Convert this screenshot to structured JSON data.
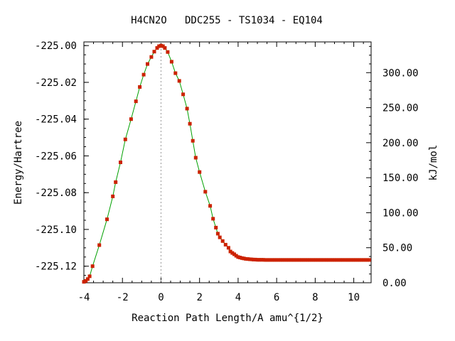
{
  "chart_data": {
    "type": "line",
    "title": "H4CN2O   DDC255 - TS1034 - EQ104",
    "xlabel": "Reaction Path Length/A amu^{1/2}",
    "ylabel": "Energy/Hartree",
    "y2label": "kJ/mol",
    "xlim": [
      -4.0,
      10.9
    ],
    "ylim": [
      -225.129,
      -224.998
    ],
    "y2lim": [
      0,
      343.9
    ],
    "x_ticks": [
      -4,
      -2,
      0,
      2,
      4,
      6,
      8,
      10
    ],
    "x_tick_labels": [
      "-4",
      "-2",
      "0",
      "2",
      "4",
      "6",
      "8",
      "10"
    ],
    "y_ticks": [
      -225.0,
      -225.02,
      -225.04,
      -225.06,
      -225.08,
      -225.1,
      -225.12
    ],
    "y_tick_labels": [
      "-225.00",
      "-225.02",
      "-225.04",
      "-225.06",
      "-225.08",
      "-225.10",
      "-225.12"
    ],
    "y2_ticks": [
      0,
      50,
      100,
      150,
      200,
      250,
      300
    ],
    "y2_tick_labels": [
      "0.00",
      "50.00",
      "100.00",
      "150.00",
      "200.00",
      "250.00",
      "300.00"
    ],
    "ts_marker_x": 0,
    "line_color": "#00a000",
    "marker_color": "#cc2200",
    "guide_color": "#999999",
    "series": [
      {
        "x": [
          -4.0,
          -3.9,
          -3.8,
          -3.7,
          -3.55,
          -3.2,
          -2.8,
          -2.5,
          -2.35,
          -2.1,
          -1.85,
          -1.55,
          -1.3,
          -1.1,
          -0.9,
          -0.7,
          -0.5,
          -0.35,
          -0.2,
          -0.1,
          0.0,
          0.1,
          0.2,
          0.35,
          0.55,
          0.75,
          0.95,
          1.15,
          1.35,
          1.5,
          1.65,
          1.8,
          2.0,
          2.3,
          2.55,
          2.7,
          2.85,
          2.95,
          3.05,
          3.2,
          3.35,
          3.5,
          3.6,
          3.7,
          3.8,
          3.9,
          4.0,
          4.1,
          4.2,
          4.3,
          4.4,
          4.5,
          4.6,
          4.7,
          4.8,
          4.9,
          5.0,
          5.1,
          5.2,
          5.3,
          5.4,
          5.5,
          5.6,
          5.7,
          5.8,
          5.9,
          6.0,
          6.1,
          6.2,
          6.3,
          6.4,
          6.5,
          6.6,
          6.7,
          6.8,
          6.9,
          7.0,
          7.1,
          7.2,
          7.3,
          7.4,
          7.5,
          7.6,
          7.7,
          7.8,
          7.9,
          8.0,
          8.1,
          8.2,
          8.3,
          8.4,
          8.5,
          8.6,
          8.7,
          8.8,
          8.9,
          9.0,
          9.1,
          9.2,
          9.3,
          9.4,
          9.5,
          9.6,
          9.7,
          9.8,
          9.9,
          10.0,
          10.1,
          10.2,
          10.3,
          10.4,
          10.5,
          10.6,
          10.7,
          10.8
        ],
        "y": [
          -225.1285,
          -225.128,
          -225.127,
          -225.1255,
          -225.12,
          -225.1085,
          -225.0945,
          -225.082,
          -225.0743,
          -225.0635,
          -225.051,
          -225.04,
          -225.0303,
          -225.0225,
          -225.0158,
          -225.01,
          -225.0062,
          -225.0033,
          -225.0013,
          -225.0003,
          -225.0,
          -225.0003,
          -225.0013,
          -225.0035,
          -225.0088,
          -225.015,
          -225.0192,
          -225.0265,
          -225.0343,
          -225.0425,
          -225.0518,
          -225.061,
          -225.0688,
          -225.0795,
          -225.0872,
          -225.0942,
          -225.099,
          -225.1023,
          -225.1043,
          -225.1063,
          -225.1083,
          -225.11,
          -225.112,
          -225.1128,
          -225.1135,
          -225.1143,
          -225.115,
          -225.1153,
          -225.1156,
          -225.1158,
          -225.116,
          -225.1161,
          -225.1162,
          -225.1163,
          -225.1164,
          -225.1164,
          -225.1165,
          -225.1165,
          -225.1165,
          -225.1165,
          -225.1166,
          -225.1166,
          -225.1166,
          -225.1166,
          -225.1166,
          -225.1166,
          -225.1166,
          -225.1166,
          -225.1166,
          -225.1166,
          -225.1166,
          -225.1166,
          -225.1166,
          -225.1166,
          -225.1166,
          -225.1166,
          -225.1166,
          -225.1166,
          -225.1166,
          -225.1166,
          -225.1166,
          -225.1166,
          -225.1166,
          -225.1166,
          -225.1166,
          -225.1166,
          -225.1166,
          -225.1166,
          -225.1166,
          -225.1166,
          -225.1166,
          -225.1166,
          -225.1166,
          -225.1166,
          -225.1166,
          -225.1166,
          -225.1166,
          -225.1166,
          -225.1166,
          -225.1166,
          -225.1166,
          -225.1166,
          -225.1166,
          -225.1166,
          -225.1166,
          -225.1166,
          -225.1166,
          -225.1166,
          -225.1166,
          -225.1166,
          -225.1166,
          -225.1166,
          -225.1166,
          -225.1166,
          -225.1166
        ]
      }
    ]
  }
}
